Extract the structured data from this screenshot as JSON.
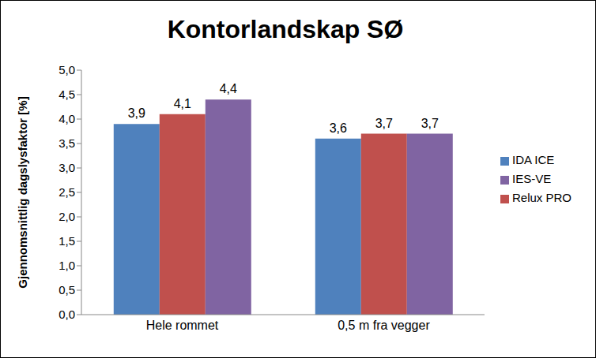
{
  "chart_data": {
    "type": "bar",
    "title": "Kontorlandskap SØ",
    "y_label": "Gjennomsnittlig dagslysfaktor [%]",
    "categories": [
      "Hele rommet",
      "0,5 m fra vegger"
    ],
    "series": [
      {
        "name": "IDA ICE",
        "color": "#4f81bd",
        "values": [
          3.9,
          3.6
        ],
        "value_labels": [
          "3,9",
          "3,6"
        ]
      },
      {
        "name": "Relux PRO",
        "color": "#c0504d",
        "values": [
          4.1,
          3.7
        ],
        "value_labels": [
          "4,1",
          "3,7"
        ]
      },
      {
        "name": "IES-VE",
        "color": "#8064a2",
        "values": [
          4.4,
          3.7
        ],
        "value_labels": [
          "4,4",
          "3,7"
        ]
      }
    ],
    "ylim": [
      0,
      5
    ],
    "yticks": [
      {
        "value": 0,
        "label": "0,0"
      },
      {
        "value": 0.5,
        "label": "0,5"
      },
      {
        "value": 1,
        "label": "1,0"
      },
      {
        "value": 1.5,
        "label": "1,5"
      },
      {
        "value": 2,
        "label": "2,0"
      },
      {
        "value": 2.5,
        "label": "2,5"
      },
      {
        "value": 3,
        "label": "3,0"
      },
      {
        "value": 3.5,
        "label": "3,5"
      },
      {
        "value": 4,
        "label": "4,0"
      },
      {
        "value": 4.5,
        "label": "4,5"
      },
      {
        "value": 5,
        "label": "5,0"
      }
    ],
    "grid": false,
    "legend": "right",
    "data_labels": true
  }
}
